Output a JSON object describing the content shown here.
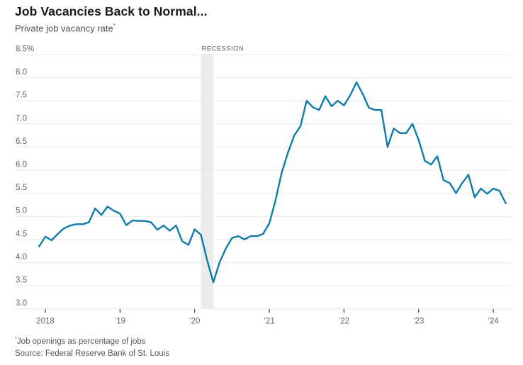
{
  "header": {
    "title": "Job Vacancies Back to Normal...",
    "subtitle": "Private job vacancy rate",
    "subtitle_superscript": "*"
  },
  "footer": {
    "footnote_superscript": "*",
    "footnote": "Job openings as percentage of jobs",
    "source": "Source: Federal Reserve Bank of St. Louis"
  },
  "colors": {
    "line": "#0f7bab",
    "gridline": "#e9e9e9",
    "recession_band": "#ececec",
    "axis_tick": "#333333",
    "axis_text": "#666666",
    "recession_text": "#666666",
    "title_text": "#1a1a1a"
  },
  "chart_data": {
    "type": "line",
    "title": "Job Vacancies Back to Normal...",
    "subtitle": "Private job vacancy rate",
    "unit": "%",
    "ylim": [
      3.0,
      8.5
    ],
    "grid": true,
    "legend": "none",
    "y_ticks": [
      {
        "label": "8.5%",
        "value": 8.5
      },
      {
        "label": "8.0",
        "value": 8.0
      },
      {
        "label": "7.5",
        "value": 7.5
      },
      {
        "label": "7.0",
        "value": 7.0
      },
      {
        "label": "6.5",
        "value": 6.5
      },
      {
        "label": "6.0",
        "value": 6.0
      },
      {
        "label": "5.5",
        "value": 5.5
      },
      {
        "label": "5.0",
        "value": 5.0
      },
      {
        "label": "4.5",
        "value": 4.5
      },
      {
        "label": "4.0",
        "value": 4.0
      },
      {
        "label": "3.5",
        "value": 3.5
      },
      {
        "label": "3.0",
        "value": 3.0
      }
    ],
    "x_ticks": [
      {
        "label": "2018",
        "month": "2018-01"
      },
      {
        "label": "’19",
        "month": "2019-01"
      },
      {
        "label": "’20",
        "month": "2020-01"
      },
      {
        "label": "’21",
        "month": "2021-01"
      },
      {
        "label": "’22",
        "month": "2022-01"
      },
      {
        "label": "’23",
        "month": "2023-01"
      },
      {
        "label": "’24",
        "month": "2024-01"
      }
    ],
    "recession": {
      "label": "RECESSION",
      "start_month": "2020-02",
      "end_month": "2020-04"
    },
    "series": [
      {
        "name": "Private job vacancy rate",
        "color": "#0f7bab",
        "months": [
          "2017-12",
          "2018-01",
          "2018-02",
          "2018-03",
          "2018-04",
          "2018-05",
          "2018-06",
          "2018-07",
          "2018-08",
          "2018-09",
          "2018-10",
          "2018-11",
          "2018-12",
          "2019-01",
          "2019-02",
          "2019-03",
          "2019-04",
          "2019-05",
          "2019-06",
          "2019-07",
          "2019-08",
          "2019-09",
          "2019-10",
          "2019-11",
          "2019-12",
          "2020-01",
          "2020-02",
          "2020-03",
          "2020-04",
          "2020-05",
          "2020-06",
          "2020-07",
          "2020-08",
          "2020-09",
          "2020-10",
          "2020-11",
          "2020-12",
          "2021-01",
          "2021-02",
          "2021-03",
          "2021-04",
          "2021-05",
          "2021-06",
          "2021-07",
          "2021-08",
          "2021-09",
          "2021-10",
          "2021-11",
          "2021-12",
          "2022-01",
          "2022-02",
          "2022-03",
          "2022-04",
          "2022-05",
          "2022-06",
          "2022-07",
          "2022-08",
          "2022-09",
          "2022-10",
          "2022-11",
          "2022-12",
          "2023-01",
          "2023-02",
          "2023-03",
          "2023-04",
          "2023-05",
          "2023-06",
          "2023-07",
          "2023-08",
          "2023-09",
          "2023-10",
          "2023-11",
          "2023-12",
          "2024-01",
          "2024-02",
          "2024-03"
        ],
        "values": [
          4.35,
          4.56,
          4.48,
          4.62,
          4.74,
          4.8,
          4.83,
          4.83,
          4.87,
          5.17,
          5.03,
          5.21,
          5.12,
          5.06,
          4.81,
          4.91,
          4.9,
          4.9,
          4.87,
          4.71,
          4.8,
          4.69,
          4.8,
          4.46,
          4.38,
          4.72,
          4.6,
          4.05,
          3.57,
          4.0,
          4.3,
          4.53,
          4.57,
          4.5,
          4.57,
          4.57,
          4.62,
          4.85,
          5.35,
          5.95,
          6.38,
          6.75,
          6.95,
          7.5,
          7.36,
          7.3,
          7.6,
          7.38,
          7.5,
          7.4,
          7.62,
          7.9,
          7.65,
          7.35,
          7.3,
          7.3,
          6.5,
          6.9,
          6.8,
          6.8,
          7.0,
          6.65,
          6.2,
          6.12,
          6.3,
          5.78,
          5.72,
          5.5,
          5.72,
          5.9,
          5.41,
          5.6,
          5.49,
          5.6,
          5.55,
          5.28
        ]
      }
    ]
  }
}
